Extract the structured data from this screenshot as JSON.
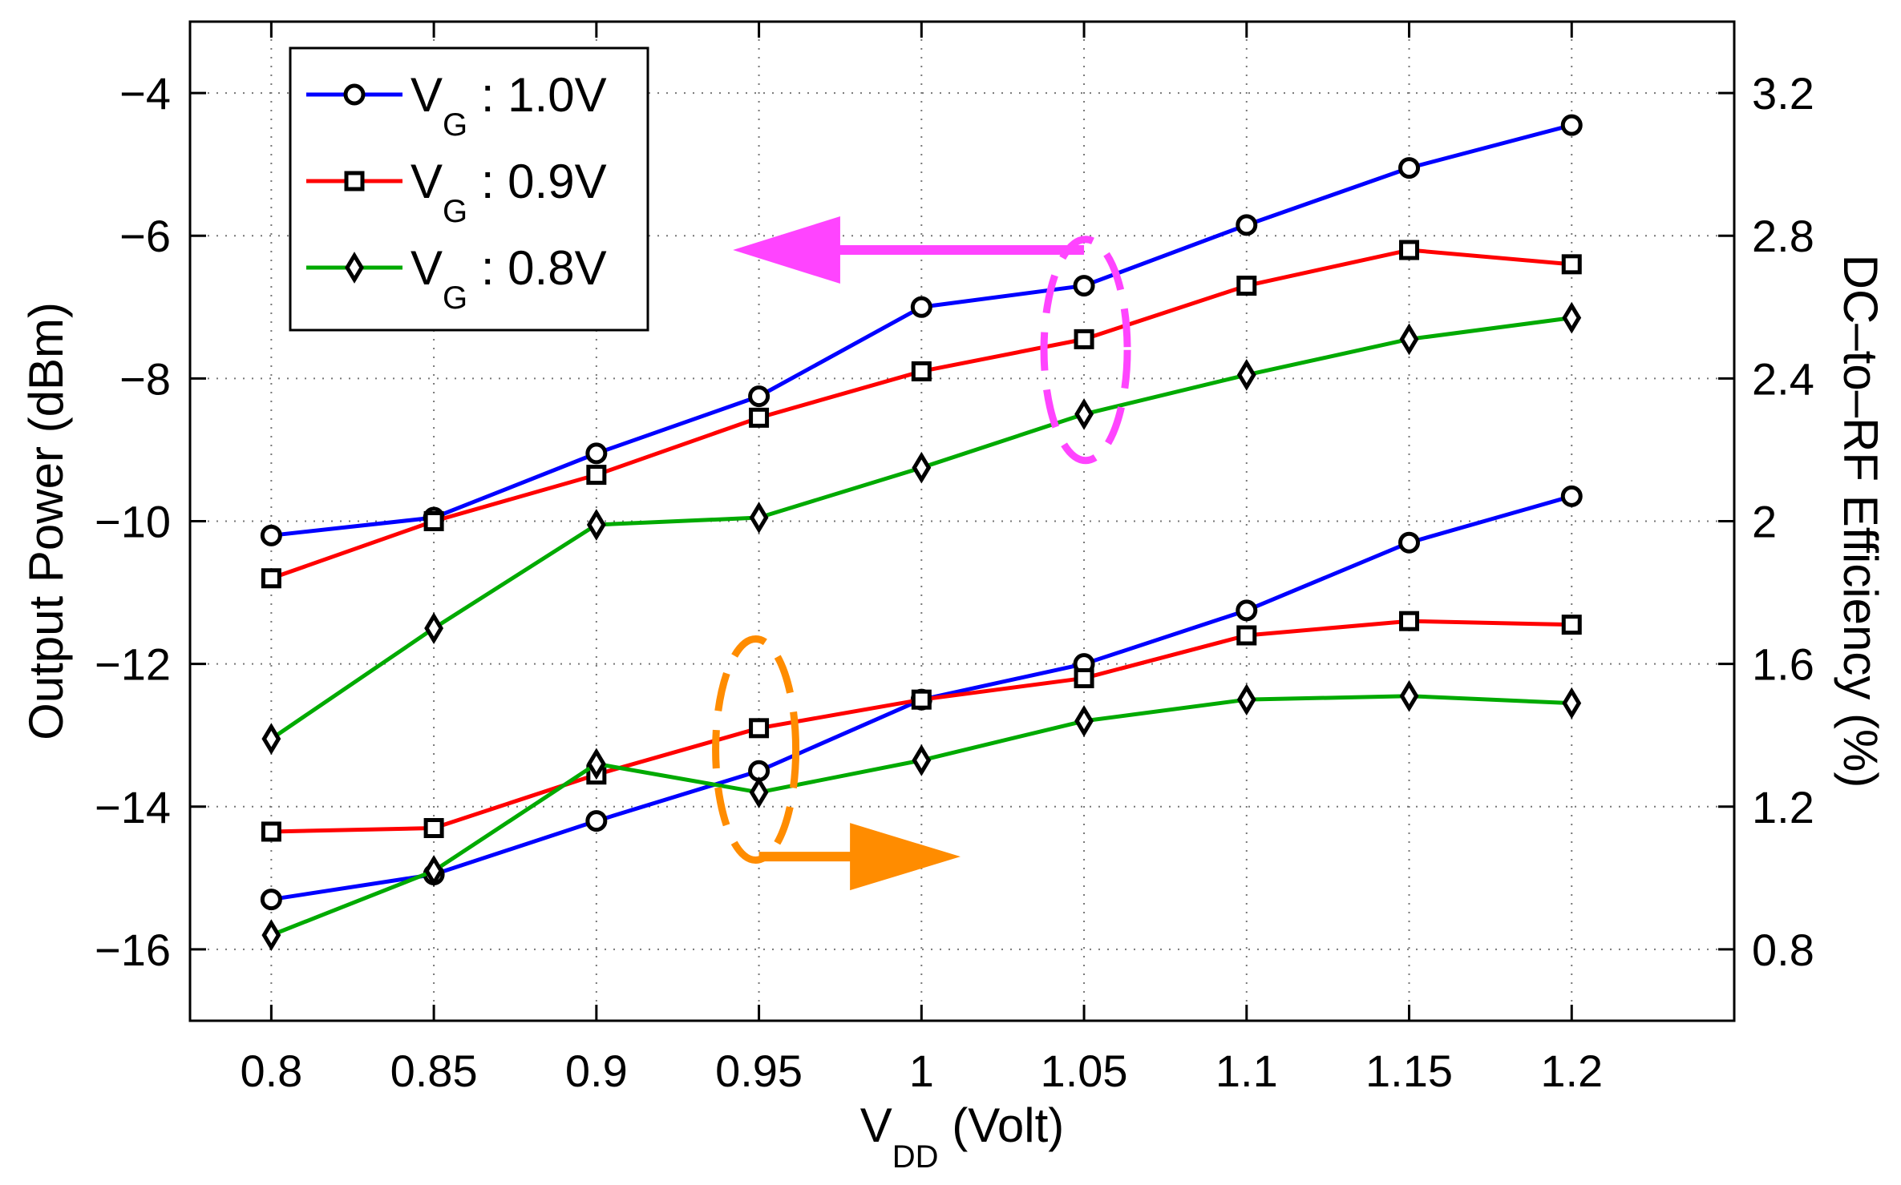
{
  "chart_data": {
    "type": "line",
    "x": [
      0.8,
      0.85,
      0.9,
      0.95,
      1.0,
      1.05,
      1.1,
      1.15,
      1.2
    ],
    "x_tick_labels": [
      "0.8",
      "0.85",
      "0.9",
      "0.95",
      "1",
      "1.05",
      "1.1",
      "1.15",
      "1.2"
    ],
    "xlim": [
      0.775,
      1.25
    ],
    "xlabel": {
      "main": "V",
      "sub": "DD",
      "rest": " (Volt)"
    },
    "ylabel_left": "Output Power (dBm)",
    "ylabel_right": "DC–to–RF Efficiency (%)",
    "ylim_left": [
      -17,
      -3
    ],
    "ylim_right": [
      0.6,
      3.4
    ],
    "y_ticks_left": [
      -16,
      -14,
      -12,
      -10,
      -8,
      -6,
      -4
    ],
    "y_tick_labels_left": [
      "−16",
      "−14",
      "−12",
      "−10",
      "−8",
      "−6",
      "−4"
    ],
    "y_ticks_right": [
      0.8,
      1.2,
      1.6,
      2.0,
      2.4,
      2.8,
      3.2
    ],
    "y_tick_labels_right": [
      "0.8",
      "1.2",
      "1.6",
      "2",
      "2.4",
      "2.8",
      "3.2"
    ],
    "grid": true,
    "legend_position": "top-left",
    "series": [
      {
        "name": "V_G : 1.0V",
        "label_main": "V",
        "label_sub": "G",
        "label_rest": " : 1.0V",
        "axis": "left",
        "color": "#0000ff",
        "marker": "circle",
        "values": [
          -10.2,
          -9.95,
          -9.05,
          -8.25,
          -7.0,
          -6.7,
          -5.85,
          -5.05,
          -4.45
        ]
      },
      {
        "name": "V_G : 0.9V",
        "label_main": "V",
        "label_sub": "G",
        "label_rest": " : 0.9V",
        "axis": "left",
        "color": "#ff0000",
        "marker": "square",
        "values": [
          -10.8,
          -10.0,
          -9.35,
          -8.55,
          -7.9,
          -7.45,
          -6.7,
          -6.2,
          -6.4
        ]
      },
      {
        "name": "V_G : 0.8V",
        "label_main": "V",
        "label_sub": "G",
        "label_rest": " : 0.8V",
        "axis": "left",
        "color": "#00aa00",
        "marker": "diamond",
        "values": [
          -13.05,
          -11.5,
          -10.05,
          -9.95,
          -9.25,
          -8.5,
          -7.95,
          -7.45,
          -7.15
        ]
      },
      {
        "name": "V_G : 1.0V efficiency",
        "axis": "right",
        "color": "#0000ff",
        "marker": "circle",
        "values": [
          0.94,
          1.01,
          1.16,
          1.3,
          1.5,
          1.6,
          1.75,
          1.94,
          2.07
        ]
      },
      {
        "name": "V_G : 0.9V efficiency",
        "axis": "right",
        "color": "#ff0000",
        "marker": "square",
        "values": [
          1.13,
          1.14,
          1.29,
          1.42,
          1.5,
          1.56,
          1.68,
          1.72,
          1.71
        ]
      },
      {
        "name": "V_G : 0.8V efficiency",
        "axis": "right",
        "color": "#00aa00",
        "marker": "diamond",
        "values": [
          0.84,
          1.02,
          1.32,
          1.24,
          1.33,
          1.44,
          1.5,
          1.51,
          1.49
        ]
      }
    ],
    "annotations": [
      {
        "type": "ellipse-with-arrow",
        "color": "#ff44ff",
        "at_x": 1.05,
        "at_y_left": -7.6,
        "points_to": "left axis"
      },
      {
        "type": "ellipse-with-arrow",
        "color": "#ff8c00",
        "at_x": 0.95,
        "at_y_left": -13.2,
        "points_to": "right axis"
      }
    ]
  }
}
